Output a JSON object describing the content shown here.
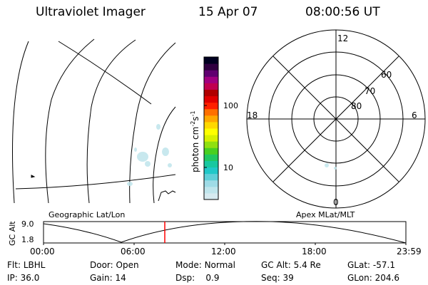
{
  "header": {
    "title": "Ultraviolet Imager",
    "date": "15 Apr 07",
    "time": "08:00:56 UT"
  },
  "colorbar": {
    "unit_label": "photon cm",
    "unit_exp1": "-2",
    "unit_s": "s",
    "unit_exp2": "-1",
    "tick_100": "100",
    "tick_10": "10",
    "colors": [
      "#d6eaf0",
      "#bfe5ec",
      "#9fdbe6",
      "#5fcfd8",
      "#20c8c8",
      "#18c8a0",
      "#20c860",
      "#48d020",
      "#90e010",
      "#d8f000",
      "#ffff00",
      "#ffd800",
      "#ffa800",
      "#ff7000",
      "#ff2000",
      "#e00000",
      "#b00000",
      "#c00050",
      "#a00080",
      "#600070",
      "#300040",
      "#000020"
    ]
  },
  "polar_plot": {
    "mlt_labels": {
      "top": "12",
      "left": "18",
      "right": "6",
      "bottom": "0"
    },
    "lat_labels": [
      "60",
      "70",
      "80"
    ]
  },
  "timeline": {
    "left_title": "Geographic Lat/Lon",
    "right_title": "Apex MLat/MLT",
    "ylabel": "GC Alt",
    "ymax": "9.0",
    "ymin": "1.8",
    "ticks": [
      "00:00",
      "06:00",
      "12:00",
      "18:00",
      "23:59"
    ]
  },
  "info": {
    "flt_label": "Flt:",
    "flt_value": "LBHL",
    "ip_label": "IP:",
    "ip_value": "36.0",
    "door_label": "Door:",
    "door_value": "Open",
    "gain_label": "Gain:",
    "gain_value": "14",
    "mode_label": "Mode:",
    "mode_value": "Normal",
    "dsp_label": "Dsp:",
    "dsp_value": "0.9",
    "gcalt_label": "GC Alt:",
    "gcalt_value": "5.4 Re",
    "seq_label": "Seq:",
    "seq_value": "39",
    "glat_label": "GLat:",
    "glat_value": "-57.1",
    "glon_label": "GLon:",
    "glon_value": "204.6"
  }
}
